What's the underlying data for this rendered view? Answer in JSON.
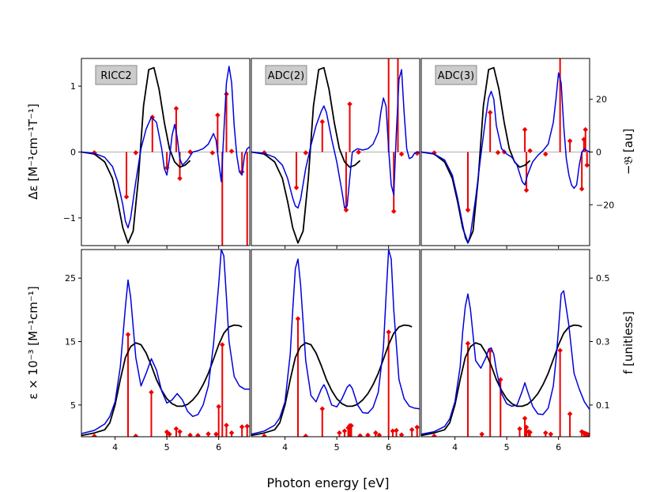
{
  "figure": {
    "xlabel": "Photon energy [eV]",
    "top_left_ylabel": "Δε [M⁻¹cm⁻¹T⁻¹]",
    "top_right_ylabel": "−𝔅 [au]",
    "bottom_left_ylabel": "ε × 10⁻³ [M⁻¹cm⁻¹]",
    "bottom_right_ylabel": "f [unitless]"
  },
  "colors": {
    "experiment": "#000000",
    "simulated": "#0000dd",
    "sticks": "#ee0000",
    "zero_line": "#b0b0b0",
    "label_box": "#cccccc"
  },
  "chart_data": {
    "type": "line",
    "methods": [
      "RICC2",
      "ADC(2)",
      "ADC(3)"
    ],
    "xlim": [
      3.35,
      6.6
    ],
    "xticks": [
      4,
      5,
      6
    ],
    "top": {
      "ylim_left": [
        -1.42,
        1.42
      ],
      "yticks_left": [
        -1,
        0,
        1
      ],
      "ylim_right": [
        -35.5,
        35.5
      ],
      "yticks_right": [
        -20,
        0,
        20
      ],
      "experiment": {
        "x": [
          3.35,
          3.6,
          3.8,
          3.95,
          4.05,
          4.15,
          4.25,
          4.35,
          4.45,
          4.55,
          4.65,
          4.75,
          4.85,
          4.95,
          5.05,
          5.15,
          5.25,
          5.35,
          5.45
        ],
        "y": [
          0.0,
          -0.03,
          -0.15,
          -0.4,
          -0.75,
          -1.15,
          -1.38,
          -1.2,
          -0.4,
          0.7,
          1.25,
          1.28,
          0.95,
          0.45,
          0.05,
          -0.15,
          -0.23,
          -0.2,
          -0.13
        ]
      },
      "panels": [
        {
          "method": "RICC2",
          "simulated": {
            "x": [
              3.35,
              3.6,
              3.8,
              3.95,
              4.05,
              4.15,
              4.2,
              4.25,
              4.3,
              4.4,
              4.5,
              4.6,
              4.7,
              4.8,
              4.9,
              4.95,
              5.0,
              5.05,
              5.1,
              5.15,
              5.2,
              5.25,
              5.3,
              5.4,
              5.5,
              5.6,
              5.7,
              5.8,
              5.9,
              5.95,
              6.0,
              6.05,
              6.1,
              6.15,
              6.2,
              6.25,
              6.3,
              6.35,
              6.4,
              6.45,
              6.5,
              6.55,
              6.6
            ],
            "y": [
              0.0,
              -0.02,
              -0.08,
              -0.22,
              -0.45,
              -0.8,
              -1.05,
              -1.15,
              -1.0,
              -0.45,
              0.05,
              0.35,
              0.53,
              0.45,
              0.05,
              -0.25,
              -0.35,
              -0.1,
              0.25,
              0.42,
              0.22,
              -0.1,
              -0.2,
              -0.12,
              0.0,
              0.02,
              0.05,
              0.12,
              0.28,
              0.18,
              -0.15,
              -0.45,
              0.3,
              1.05,
              1.3,
              1.05,
              0.4,
              -0.05,
              -0.3,
              -0.35,
              -0.05,
              0.05,
              0.08
            ]
          },
          "sticks": {
            "energy": [
              3.6,
              4.22,
              4.4,
              4.72,
              5.0,
              5.18,
              5.25,
              5.45,
              5.88,
              5.98,
              6.07,
              6.15,
              6.25,
              6.45,
              6.55
            ],
            "value_au": [
              -0.25,
              -17.0,
              -0.25,
              13.2,
              -6.0,
              16.5,
              -10.0,
              0.05,
              -0.3,
              14.0,
              -55.0,
              22.0,
              0.3,
              -7.5,
              -55.0
            ]
          }
        },
        {
          "method": "ADC(2)",
          "simulated": {
            "x": [
              3.35,
              3.6,
              3.8,
              3.95,
              4.05,
              4.15,
              4.2,
              4.25,
              4.3,
              4.4,
              4.5,
              4.6,
              4.7,
              4.75,
              4.8,
              4.9,
              5.0,
              5.1,
              5.15,
              5.2,
              5.25,
              5.3,
              5.4,
              5.5,
              5.6,
              5.7,
              5.8,
              5.85,
              5.9,
              5.95,
              6.0,
              6.05,
              6.1,
              6.15,
              6.2,
              6.25,
              6.3,
              6.35,
              6.4,
              6.45,
              6.5,
              6.55,
              6.6
            ],
            "y": [
              0.0,
              -0.02,
              -0.08,
              -0.2,
              -0.4,
              -0.7,
              -0.82,
              -0.85,
              -0.72,
              -0.25,
              0.1,
              0.4,
              0.62,
              0.7,
              0.6,
              0.2,
              -0.15,
              -0.6,
              -0.85,
              -0.82,
              -0.4,
              0.0,
              0.05,
              0.03,
              0.05,
              0.12,
              0.3,
              0.6,
              0.82,
              0.7,
              0.05,
              -0.5,
              -0.65,
              0.3,
              1.1,
              1.25,
              0.6,
              0.05,
              -0.1,
              -0.08,
              -0.02,
              0.0,
              0.0
            ]
          },
          "sticks": {
            "energy": [
              3.6,
              4.22,
              4.4,
              4.72,
              5.18,
              5.25,
              5.42,
              6.0,
              6.1,
              6.18,
              6.25,
              6.55
            ],
            "value_au": [
              -0.25,
              -13.5,
              -0.3,
              11.5,
              -22.0,
              18.2,
              -0.05,
              55.0,
              -22.5,
              55.0,
              -0.8,
              -0.5
            ]
          }
        },
        {
          "method": "ADC(3)",
          "simulated": {
            "x": [
              3.35,
              3.6,
              3.8,
              3.95,
              4.05,
              4.15,
              4.2,
              4.25,
              4.3,
              4.4,
              4.5,
              4.6,
              4.65,
              4.7,
              4.75,
              4.8,
              4.9,
              5.0,
              5.1,
              5.2,
              5.3,
              5.35,
              5.4,
              5.5,
              5.6,
              5.7,
              5.8,
              5.9,
              5.95,
              6.0,
              6.05,
              6.1,
              6.15,
              6.2,
              6.25,
              6.3,
              6.35,
              6.4,
              6.45,
              6.5,
              6.55,
              6.6
            ],
            "y": [
              0.0,
              -0.03,
              -0.12,
              -0.35,
              -0.7,
              -1.1,
              -1.3,
              -1.38,
              -1.25,
              -0.7,
              -0.05,
              0.55,
              0.82,
              0.92,
              0.8,
              0.4,
              0.05,
              -0.03,
              -0.08,
              -0.2,
              -0.45,
              -0.5,
              -0.35,
              -0.15,
              -0.05,
              0.02,
              0.12,
              0.45,
              0.8,
              1.2,
              1.05,
              0.4,
              -0.1,
              -0.35,
              -0.5,
              -0.55,
              -0.5,
              -0.2,
              0.0,
              0.05,
              0.02,
              0.0
            ]
          },
          "sticks": {
            "energy": [
              3.6,
              4.25,
              4.68,
              4.83,
              4.95,
              5.35,
              5.38,
              5.45,
              5.75,
              6.03,
              6.22,
              6.45,
              6.49,
              6.52,
              6.55
            ],
            "value_au": [
              -0.3,
              -22.0,
              15.0,
              -0.2,
              0.05,
              8.5,
              -14.5,
              0.5,
              -0.8,
              55.0,
              4.2,
              -14.0,
              4.8,
              8.5,
              -5.0
            ]
          }
        }
      ]
    },
    "bottom": {
      "ylim_left": [
        0,
        29.5
      ],
      "yticks_left": [
        5,
        15,
        25
      ],
      "ylim_right": [
        0,
        0.59
      ],
      "yticks_right": [
        0.1,
        0.3,
        0.5
      ],
      "experiment": {
        "x": [
          3.35,
          3.6,
          3.8,
          3.9,
          4.0,
          4.1,
          4.2,
          4.3,
          4.4,
          4.5,
          4.6,
          4.7,
          4.8,
          4.9,
          5.0,
          5.1,
          5.2,
          5.3,
          5.4,
          5.5,
          5.6,
          5.7,
          5.8,
          5.9,
          6.0,
          6.1,
          6.2,
          6.3,
          6.4,
          6.45
        ],
        "y": [
          0.2,
          0.6,
          1.1,
          2.2,
          5.0,
          9.0,
          12.5,
          14.2,
          14.8,
          14.5,
          13.2,
          11.2,
          9.0,
          7.3,
          6.0,
          5.2,
          4.8,
          4.8,
          5.1,
          5.8,
          6.8,
          8.2,
          10.0,
          12.2,
          14.5,
          16.3,
          17.3,
          17.6,
          17.5,
          17.3
        ]
      },
      "panels": [
        {
          "method": "RICC2",
          "simulated": {
            "x": [
              3.35,
              3.6,
              3.8,
              3.9,
              4.0,
              4.1,
              4.2,
              4.25,
              4.3,
              4.4,
              4.5,
              4.6,
              4.7,
              4.8,
              4.9,
              5.0,
              5.1,
              5.2,
              5.3,
              5.4,
              5.5,
              5.6,
              5.7,
              5.8,
              5.9,
              6.0,
              6.05,
              6.1,
              6.15,
              6.2,
              6.3,
              6.4,
              6.5,
              6.6
            ],
            "y": [
              0.5,
              1.0,
              2.0,
              3.2,
              5.5,
              11.0,
              20.5,
              24.7,
              22.0,
              12.5,
              8.0,
              10.0,
              12.3,
              10.5,
              7.2,
              5.3,
              5.8,
              6.8,
              5.8,
              4.0,
              3.2,
              3.5,
              5.0,
              8.0,
              14.5,
              24.0,
              29.5,
              28.5,
              22.0,
              15.0,
              9.5,
              8.0,
              7.5,
              7.5
            ]
          },
          "sticks": {
            "energy": [
              3.6,
              4.25,
              4.4,
              4.7,
              5.0,
              5.05,
              5.18,
              5.25,
              5.45,
              5.6,
              5.8,
              5.95,
              6.0,
              6.07,
              6.15,
              6.25,
              6.45,
              6.55
            ],
            "value_f": [
              0.002,
              0.322,
              0.002,
              0.14,
              0.015,
              0.008,
              0.025,
              0.016,
              0.005,
              0.004,
              0.009,
              0.008,
              0.095,
              0.29,
              0.036,
              0.012,
              0.031,
              0.033
            ]
          }
        },
        {
          "method": "ADC(2)",
          "simulated": {
            "x": [
              3.35,
              3.6,
              3.8,
              3.9,
              4.0,
              4.1,
              4.15,
              4.2,
              4.25,
              4.3,
              4.4,
              4.5,
              4.6,
              4.7,
              4.75,
              4.8,
              4.9,
              5.0,
              5.1,
              5.2,
              5.25,
              5.3,
              5.4,
              5.5,
              5.6,
              5.7,
              5.8,
              5.9,
              5.95,
              6.0,
              6.05,
              6.1,
              6.2,
              6.3,
              6.4,
              6.5,
              6.6
            ],
            "y": [
              0.4,
              0.9,
              1.8,
              3.0,
              5.5,
              13.0,
              20.0,
              26.5,
              28.0,
              24.0,
              12.0,
              6.5,
              5.5,
              7.5,
              8.2,
              7.4,
              5.0,
              4.7,
              6.0,
              7.8,
              8.2,
              7.6,
              5.0,
              3.8,
              3.7,
              4.6,
              7.0,
              14.0,
              22.0,
              29.5,
              28.0,
              20.0,
              9.0,
              6.0,
              4.8,
              4.5,
              4.4
            ]
          },
          "sticks": {
            "energy": [
              3.6,
              4.25,
              4.4,
              4.72,
              5.05,
              5.15,
              5.22,
              5.25,
              5.28,
              5.45,
              5.6,
              5.75,
              5.82,
              6.0,
              6.08,
              6.15,
              6.25,
              6.45,
              6.55
            ],
            "value_f": [
              0.002,
              0.372,
              0.002,
              0.088,
              0.012,
              0.018,
              0.028,
              0.035,
              0.035,
              0.003,
              0.005,
              0.012,
              0.005,
              0.33,
              0.018,
              0.02,
              0.006,
              0.022,
              0.03
            ]
          }
        },
        {
          "method": "ADC(3)",
          "simulated": {
            "x": [
              3.35,
              3.6,
              3.8,
              3.9,
              4.0,
              4.1,
              4.15,
              4.2,
              4.25,
              4.3,
              4.4,
              4.5,
              4.6,
              4.65,
              4.7,
              4.75,
              4.8,
              4.9,
              5.0,
              5.1,
              5.2,
              5.3,
              5.35,
              5.4,
              5.5,
              5.6,
              5.7,
              5.8,
              5.9,
              5.95,
              6.0,
              6.05,
              6.1,
              6.2,
              6.3,
              6.4,
              6.5,
              6.6
            ],
            "y": [
              0.4,
              0.8,
              1.6,
              2.8,
              5.5,
              11.0,
              16.5,
              20.5,
              22.5,
              20.0,
              12.0,
              10.8,
              12.5,
              13.8,
              14.0,
              13.0,
              10.5,
              6.8,
              5.2,
              4.8,
              5.0,
              7.2,
              8.5,
              7.2,
              4.8,
              3.6,
              3.5,
              4.5,
              8.0,
              12.0,
              17.0,
              22.5,
              23.0,
              17.5,
              10.0,
              7.5,
              5.5,
              4.3
            ]
          },
          "sticks": {
            "energy": [
              3.6,
              4.25,
              4.52,
              4.68,
              4.88,
              5.25,
              5.35,
              5.38,
              5.42,
              5.45,
              5.75,
              5.85,
              6.03,
              6.22,
              6.45,
              6.49,
              6.52,
              6.55,
              6.58
            ],
            "value_f": [
              0.002,
              0.294,
              0.008,
              0.27,
              0.18,
              0.025,
              0.058,
              0.03,
              0.016,
              0.014,
              0.012,
              0.008,
              0.272,
              0.072,
              0.016,
              0.012,
              0.01,
              0.008,
              0.006
            ]
          }
        }
      ]
    }
  }
}
